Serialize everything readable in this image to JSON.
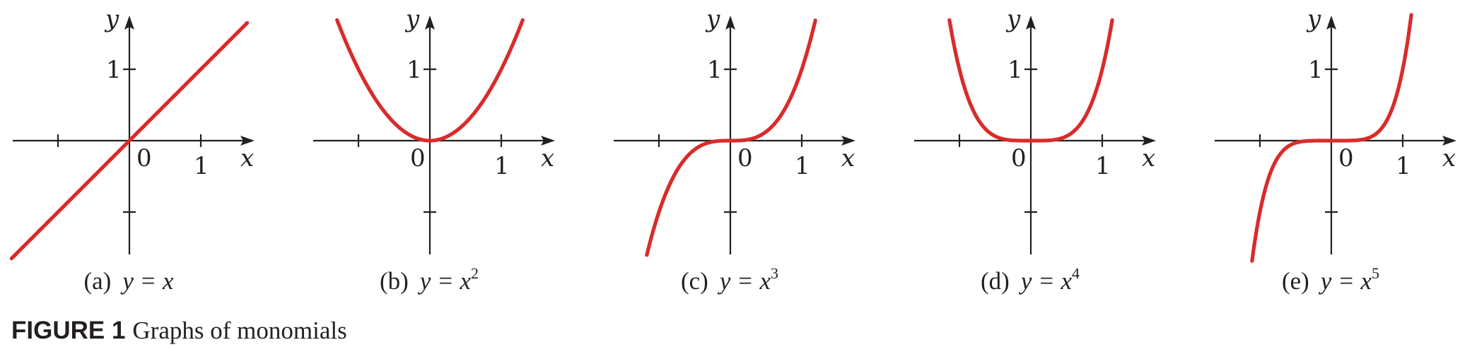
{
  "colors": {
    "curve": "#d92b2b",
    "axis": "#231f20",
    "background": "#ffffff"
  },
  "figure": {
    "number": "FIGURE 1",
    "title": "Graphs of monomials"
  },
  "chart_data": [
    {
      "type": "line",
      "panel_letter": "(a)",
      "equation": "y = x",
      "exponent": "",
      "function": "x^1",
      "series": [
        {
          "exponent_value": 1,
          "x_range": [
            -1.65,
            1.65
          ]
        }
      ],
      "xlabel": "x",
      "ylabel": "y",
      "xlim": [
        -1.65,
        1.85
      ],
      "ylim": [
        -1.6,
        1.7
      ],
      "x_ticks": [
        -1,
        1
      ],
      "y_ticks": [
        -1,
        1
      ],
      "tick_labels": {
        "origin": "0",
        "x_one": "1",
        "y_one": "1"
      }
    },
    {
      "type": "line",
      "panel_letter": "(b)",
      "equation": "y = x",
      "exponent": "2",
      "function": "x^2",
      "series": [
        {
          "exponent_value": 2,
          "x_range": [
            -1.3,
            1.3
          ]
        }
      ],
      "xlabel": "x",
      "ylabel": "y",
      "xlim": [
        -1.65,
        1.85
      ],
      "ylim": [
        -1.6,
        1.7
      ],
      "x_ticks": [
        -1,
        1
      ],
      "y_ticks": [
        -1,
        1
      ],
      "tick_labels": {
        "origin": "0",
        "x_one": "1",
        "y_one": "1"
      }
    },
    {
      "type": "line",
      "panel_letter": "(c)",
      "equation": "y = x",
      "exponent": "3",
      "function": "x^3",
      "series": [
        {
          "exponent_value": 3,
          "x_range": [
            -1.17,
            1.19
          ]
        }
      ],
      "xlabel": "x",
      "ylabel": "y",
      "xlim": [
        -1.65,
        1.85
      ],
      "ylim": [
        -1.6,
        1.7
      ],
      "x_ticks": [
        -1,
        1
      ],
      "y_ticks": [
        -1,
        1
      ],
      "tick_labels": {
        "origin": "0",
        "x_one": "1",
        "y_one": "1"
      }
    },
    {
      "type": "line",
      "panel_letter": "(d)",
      "equation": "y = x",
      "exponent": "4",
      "function": "x^4",
      "series": [
        {
          "exponent_value": 4,
          "x_range": [
            -1.14,
            1.14
          ]
        }
      ],
      "xlabel": "x",
      "ylabel": "y",
      "xlim": [
        -1.65,
        1.85
      ],
      "ylim": [
        -1.6,
        1.7
      ],
      "x_ticks": [
        -1,
        1
      ],
      "y_ticks": [
        -1,
        1
      ],
      "tick_labels": {
        "origin": "0",
        "x_one": "1",
        "y_one": "1"
      }
    },
    {
      "type": "line",
      "panel_letter": "(e)",
      "equation": "y = x",
      "exponent": "5",
      "function": "x^5",
      "series": [
        {
          "exponent_value": 5,
          "x_range": [
            -1.11,
            1.12
          ]
        }
      ],
      "xlabel": "x",
      "ylabel": "y",
      "xlim": [
        -1.65,
        1.85
      ],
      "ylim": [
        -1.6,
        1.7
      ],
      "x_ticks": [
        -1,
        1
      ],
      "y_ticks": [
        -1,
        1
      ],
      "tick_labels": {
        "origin": "0",
        "x_one": "1",
        "y_one": "1"
      }
    }
  ]
}
